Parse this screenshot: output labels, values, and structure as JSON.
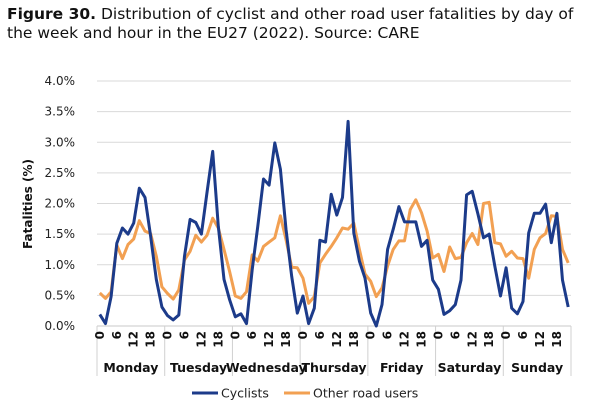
{
  "figure": {
    "label": "Figure 30.",
    "caption": "Distribution of cyclist and other road user fatalities by day of the week and hour in the EU27 (2022). Source: CARE"
  },
  "chart_data": {
    "type": "line",
    "ylabel": "Fatalities (%)",
    "ylim": [
      0,
      4.0
    ],
    "yticks": [
      "0.0%",
      "0.5%",
      "1.0%",
      "1.5%",
      "2.0%",
      "2.5%",
      "3.0%",
      "3.5%",
      "4.0%"
    ],
    "grid": true,
    "legend": "bottom",
    "days": [
      "Monday",
      "Tuesday",
      "Wednesday",
      "Thursday",
      "Friday",
      "Saturday",
      "Sunday"
    ],
    "hour_tick_labels": [
      "0",
      "6",
      "12",
      "18"
    ],
    "hours": [
      0,
      2,
      4,
      6,
      8,
      10,
      12,
      14,
      16,
      18,
      20,
      22
    ],
    "series": [
      {
        "name": "Cyclists",
        "color": "#1c3b8a",
        "values": [
          0.19,
          0.04,
          0.48,
          1.35,
          1.6,
          1.5,
          1.68,
          2.25,
          2.1,
          1.47,
          0.76,
          0.31,
          0.17,
          0.1,
          0.18,
          1.14,
          1.74,
          1.69,
          1.5,
          2.18,
          2.85,
          1.63,
          0.76,
          0.43,
          0.15,
          0.2,
          0.04,
          0.92,
          1.63,
          2.4,
          2.3,
          2.99,
          2.56,
          1.58,
          0.81,
          0.21,
          0.49,
          0.04,
          0.29,
          1.4,
          1.37,
          2.15,
          1.81,
          2.1,
          3.34,
          1.52,
          1.06,
          0.78,
          0.21,
          0.0,
          0.35,
          1.25,
          1.58,
          1.95,
          1.7,
          1.7,
          1.7,
          1.3,
          1.4,
          0.75,
          0.6,
          0.19,
          0.25,
          0.35,
          0.75,
          2.14,
          2.2,
          1.83,
          1.44,
          1.5,
          0.98,
          0.49,
          0.95,
          0.29,
          0.2,
          0.4,
          1.52,
          1.84,
          1.84,
          1.99,
          1.36,
          1.84,
          0.75,
          0.31
        ]
      },
      {
        "name": "Other road users",
        "color": "#f2a052",
        "values": [
          0.54,
          0.45,
          0.56,
          1.32,
          1.1,
          1.33,
          1.42,
          1.72,
          1.55,
          1.51,
          1.14,
          0.64,
          0.53,
          0.44,
          0.59,
          1.08,
          1.22,
          1.48,
          1.37,
          1.48,
          1.76,
          1.6,
          1.25,
          0.89,
          0.49,
          0.45,
          0.56,
          1.16,
          1.06,
          1.3,
          1.37,
          1.44,
          1.8,
          1.41,
          0.96,
          0.95,
          0.78,
          0.37,
          0.48,
          1.03,
          1.17,
          1.3,
          1.44,
          1.6,
          1.58,
          1.68,
          1.25,
          0.85,
          0.73,
          0.48,
          0.62,
          0.98,
          1.25,
          1.39,
          1.39,
          1.9,
          2.06,
          1.85,
          1.55,
          1.11,
          1.17,
          0.89,
          1.29,
          1.1,
          1.12,
          1.36,
          1.51,
          1.33,
          2.0,
          2.02,
          1.36,
          1.34,
          1.14,
          1.22,
          1.11,
          1.1,
          0.78,
          1.25,
          1.44,
          1.51,
          1.8,
          1.79,
          1.25,
          1.03
        ]
      }
    ]
  }
}
